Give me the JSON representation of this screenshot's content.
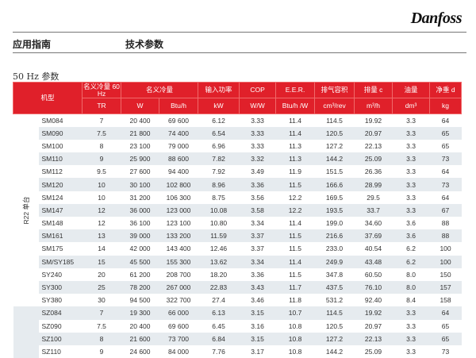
{
  "logo": "Danfoss",
  "header": {
    "left": "应用指南",
    "right": "技术参数"
  },
  "subtitle": "50 Hz 参数",
  "columns": {
    "model": "机型",
    "cap60": "名义冷量 60 Hz",
    "cap": "名义冷量",
    "power": "输入功率",
    "cop": "COP",
    "eer": "E.E.R.",
    "disp": "排气容积",
    "flow": "排量 c",
    "oil": "油量",
    "weight": "净重 d"
  },
  "units": [
    "TR",
    "W",
    "Btu/h",
    "kW",
    "W/W",
    "Btu/h /W",
    "cm³/rev",
    "m³/h",
    "dm³",
    "kg"
  ],
  "group_label": "R22 单台",
  "rows": [
    [
      "SM084",
      "7",
      "20 400",
      "69 600",
      "6.12",
      "3.33",
      "11.4",
      "114.5",
      "19.92",
      "3.3",
      "64"
    ],
    [
      "SM090",
      "7.5",
      "21 800",
      "74 400",
      "6.54",
      "3.33",
      "11.4",
      "120.5",
      "20.97",
      "3.3",
      "65"
    ],
    [
      "SM100",
      "8",
      "23 100",
      "79 000",
      "6.96",
      "3.33",
      "11.3",
      "127.2",
      "22.13",
      "3.3",
      "65"
    ],
    [
      "SM110",
      "9",
      "25 900",
      "88 600",
      "7.82",
      "3.32",
      "11.3",
      "144.2",
      "25.09",
      "3.3",
      "73"
    ],
    [
      "SM112",
      "9.5",
      "27 600",
      "94 400",
      "7.92",
      "3.49",
      "11.9",
      "151.5",
      "26.36",
      "3.3",
      "64"
    ],
    [
      "SM120",
      "10",
      "30 100",
      "102 800",
      "8.96",
      "3.36",
      "11.5",
      "166.6",
      "28.99",
      "3.3",
      "73"
    ],
    [
      "SM124",
      "10",
      "31 200",
      "106 300",
      "8.75",
      "3.56",
      "12.2",
      "169.5",
      "29.5",
      "3.3",
      "64"
    ],
    [
      "SM147",
      "12",
      "36 000",
      "123 000",
      "10.08",
      "3.58",
      "12.2",
      "193.5",
      "33.7",
      "3.3",
      "67"
    ],
    [
      "SM148",
      "12",
      "36 100",
      "123 100",
      "10.80",
      "3.34",
      "11.4",
      "199.0",
      "34.60",
      "3.6",
      "88"
    ],
    [
      "SM161",
      "13",
      "39 000",
      "133 200",
      "11.59",
      "3.37",
      "11.5",
      "216.6",
      "37.69",
      "3.6",
      "88"
    ],
    [
      "SM175",
      "14",
      "42 000",
      "143 400",
      "12.46",
      "3.37",
      "11.5",
      "233.0",
      "40.54",
      "6.2",
      "100"
    ],
    [
      "SM/SY185",
      "15",
      "45 500",
      "155 300",
      "13.62",
      "3.34",
      "11.4",
      "249.9",
      "43.48",
      "6.2",
      "100"
    ],
    [
      "SY240",
      "20",
      "61 200",
      "208 700",
      "18.20",
      "3.36",
      "11.5",
      "347.8",
      "60.50",
      "8.0",
      "150"
    ],
    [
      "SY300",
      "25",
      "78 200",
      "267 000",
      "22.83",
      "3.43",
      "11.7",
      "437.5",
      "76.10",
      "8.0",
      "157"
    ],
    [
      "SY380",
      "30",
      "94 500",
      "322 700",
      "27.4",
      "3.46",
      "11.8",
      "531.2",
      "92.40",
      "8.4",
      "158"
    ],
    [
      "SZ084",
      "7",
      "19 300",
      "66 000",
      "6.13",
      "3.15",
      "10.7",
      "114.5",
      "19.92",
      "3.3",
      "64"
    ],
    [
      "SZ090",
      "7.5",
      "20 400",
      "69 600",
      "6.45",
      "3.16",
      "10.8",
      "120.5",
      "20.97",
      "3.3",
      "65"
    ],
    [
      "SZ100",
      "8",
      "21 600",
      "73 700",
      "6.84",
      "3.15",
      "10.8",
      "127.2",
      "22.13",
      "3.3",
      "65"
    ],
    [
      "SZ110",
      "9",
      "24 600",
      "84 000",
      "7.76",
      "3.17",
      "10.8",
      "144.2",
      "25.09",
      "3.3",
      "73"
    ]
  ],
  "colors": {
    "header_bg": "#e0202a",
    "alt_row": "#e6ebef"
  }
}
